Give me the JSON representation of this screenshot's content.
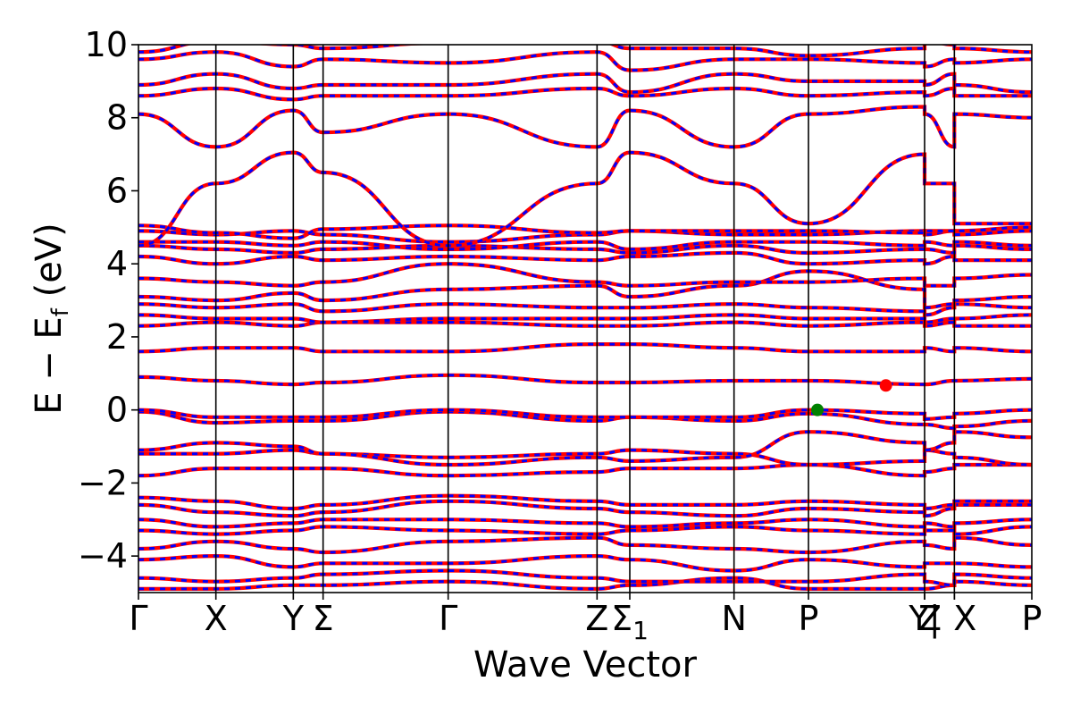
{
  "chart_data": {
    "type": "line",
    "xlabel": "Wave Vector",
    "ylabel": "E − E",
    "ylabel_sub": "f",
    "ylabel_unit": " (eV)",
    "ylim": [
      -5,
      10
    ],
    "yticks": [
      -4,
      -2,
      0,
      2,
      4,
      6,
      8,
      10
    ],
    "ytick_labels": [
      "−4",
      "−2",
      "0",
      "2",
      "4",
      "6",
      "8",
      "10"
    ],
    "grid": false,
    "legend": "none",
    "kpath": [
      {
        "label": "Γ",
        "sub": "",
        "x": 0.0
      },
      {
        "label": "X",
        "sub": "",
        "x": 0.26
      },
      {
        "label": "Y",
        "sub": "",
        "x": 0.52
      },
      {
        "label": "Σ",
        "sub": "",
        "x": 0.62
      },
      {
        "label": "Γ",
        "sub": "",
        "x": 1.04
      },
      {
        "label": "Z",
        "sub": "",
        "x": 1.54
      },
      {
        "label": "Σ",
        "sub": "1",
        "x": 1.65
      },
      {
        "label": "N",
        "sub": "",
        "x": 2.0
      },
      {
        "label": "P",
        "sub": "",
        "x": 2.25
      },
      {
        "label": "Y",
        "sub": "",
        "x": 2.64
      },
      {
        "label": "Z",
        "sub": "",
        "x": 2.64
      },
      {
        "label": "|",
        "sub": "",
        "x": 2.74
      },
      {
        "label": "X",
        "sub": "",
        "x": 2.74
      },
      {
        "label": "P",
        "sub": "",
        "x": 3.0
      }
    ],
    "xlim": [
      0.0,
      3.0
    ],
    "band_colors": {
      "spin_up": "#ff0000",
      "spin_down": "#0000ff"
    },
    "bands": [
      {
        "name": "",
        "y": [
          -4.9,
          -4.9,
          -4.8,
          -4.8,
          -4.7,
          -4.9,
          -4.8,
          -4.6,
          -4.9,
          -4.9,
          -4.9,
          -4.8,
          -4.7,
          -4.8
        ]
      },
      {
        "name": "",
        "y": [
          -4.6,
          -4.7,
          -4.6,
          -4.5,
          -4.4,
          -4.6,
          -4.7,
          -4.7,
          -4.7,
          -4.5,
          -4.7,
          -4.8,
          -4.5,
          -4.6
        ]
      },
      {
        "name": "",
        "y": [
          -4.1,
          -4.0,
          -4.3,
          -4.2,
          -4.2,
          -4.0,
          -4.1,
          -4.4,
          -4.1,
          -4.3,
          -4.2,
          -4.2,
          -4.2,
          -4.3
        ]
      },
      {
        "name": "",
        "y": [
          -3.8,
          -3.6,
          -3.8,
          -3.9,
          -3.6,
          -3.5,
          -3.7,
          -3.8,
          -3.9,
          -3.6,
          -3.7,
          -3.8,
          -3.5,
          -3.7
        ]
      },
      {
        "name": "",
        "y": [
          -3.3,
          -3.4,
          -3.3,
          -3.2,
          -3.3,
          -3.4,
          -3.3,
          -3.2,
          -3.3,
          -3.4,
          -3.3,
          -3.3,
          -3.4,
          -3.2
        ]
      },
      {
        "name": "",
        "y": [
          -3.0,
          -3.2,
          -3.1,
          -3.0,
          -3.0,
          -3.1,
          -3.2,
          -3.1,
          -3.0,
          -3.2,
          -3.1,
          -3.2,
          -3.1,
          -3.0
        ]
      },
      {
        "name": "",
        "y": [
          -2.6,
          -2.8,
          -2.9,
          -2.8,
          -2.5,
          -2.7,
          -2.8,
          -2.9,
          -2.7,
          -2.8,
          -2.9,
          -2.7,
          -2.6,
          -2.6
        ]
      },
      {
        "name": "",
        "y": [
          -2.4,
          -2.5,
          -2.7,
          -2.6,
          -2.35,
          -2.5,
          -2.6,
          -2.6,
          -2.5,
          -2.6,
          -2.7,
          -2.6,
          -2.5,
          -2.5
        ]
      },
      {
        "name": "",
        "y": [
          -1.8,
          -1.6,
          -1.6,
          -1.6,
          -1.8,
          -1.7,
          -1.6,
          -1.6,
          -1.5,
          -1.8,
          -1.7,
          -1.6,
          -1.5,
          -1.5
        ]
      },
      {
        "name": "",
        "y": [
          -1.2,
          -1.2,
          -1.1,
          -1.2,
          -1.3,
          -1.2,
          -1.1,
          -1.2,
          -1.5,
          -1.4,
          -1.1,
          -1.2,
          -1.3,
          -1.5
        ]
      },
      {
        "name": "",
        "y": [
          -1.1,
          -0.9,
          -1.0,
          -1.2,
          -1.5,
          -1.3,
          -1.4,
          -1.3,
          -0.6,
          -0.9,
          -1.1,
          -0.9,
          -0.6,
          -0.75
        ]
      },
      {
        "name": "",
        "y": [
          -0.05,
          -0.35,
          -0.3,
          -0.3,
          -0.05,
          -0.3,
          -0.2,
          -0.3,
          -0.1,
          -0.4,
          -0.4,
          -0.5,
          -0.45,
          -0.3
        ]
      },
      {
        "name": "",
        "y": [
          0.0,
          -0.2,
          -0.2,
          -0.2,
          0.0,
          -0.2,
          -0.2,
          -0.2,
          0.0,
          -0.1,
          -0.25,
          -0.2,
          -0.1,
          0.0
        ]
      },
      {
        "name": "",
        "y": [
          0.9,
          0.8,
          0.7,
          0.75,
          0.95,
          0.75,
          0.75,
          0.8,
          0.8,
          0.7,
          0.7,
          0.8,
          0.8,
          0.85
        ]
      },
      {
        "name": "",
        "y": [
          1.6,
          1.7,
          1.7,
          1.6,
          1.6,
          1.8,
          1.8,
          1.7,
          1.6,
          1.6,
          1.7,
          1.6,
          1.7,
          1.6
        ]
      },
      {
        "name": "",
        "y": [
          2.3,
          2.4,
          2.3,
          2.4,
          2.4,
          2.3,
          2.3,
          2.4,
          2.3,
          2.4,
          2.3,
          2.4,
          2.3,
          2.3
        ]
      },
      {
        "name": "",
        "y": [
          2.6,
          2.5,
          2.5,
          2.4,
          2.5,
          2.5,
          2.5,
          2.6,
          2.5,
          2.5,
          2.4,
          2.5,
          2.5,
          2.6
        ]
      },
      {
        "name": "",
        "y": [
          2.9,
          2.8,
          2.9,
          2.7,
          2.9,
          2.8,
          2.8,
          2.9,
          2.8,
          2.7,
          2.6,
          2.8,
          2.9,
          2.8
        ]
      },
      {
        "name": "",
        "y": [
          3.1,
          3.0,
          3.2,
          3.0,
          3.3,
          3.4,
          3.1,
          3.4,
          3.8,
          3.3,
          2.8,
          2.9,
          3.0,
          3.1
        ]
      },
      {
        "name": "",
        "y": [
          3.6,
          3.5,
          3.4,
          3.5,
          4.0,
          3.5,
          3.4,
          3.5,
          3.5,
          3.6,
          3.4,
          3.4,
          3.6,
          3.7
        ]
      },
      {
        "name": "",
        "y": [
          4.2,
          4.0,
          4.2,
          4.1,
          4.2,
          4.1,
          4.2,
          4.3,
          4.0,
          4.1,
          4.0,
          4.2,
          4.1,
          4.1
        ]
      },
      {
        "name": "",
        "y": [
          4.5,
          4.4,
          4.3,
          4.4,
          4.5,
          4.4,
          4.3,
          4.5,
          4.3,
          4.4,
          4.4,
          4.3,
          4.5,
          4.4
        ]
      },
      {
        "name": "",
        "y": [
          4.6,
          4.6,
          4.5,
          4.6,
          4.4,
          4.6,
          4.4,
          4.6,
          4.6,
          4.5,
          4.6,
          4.5,
          4.6,
          4.5
        ]
      },
      {
        "name": "",
        "y": [
          4.9,
          4.8,
          4.9,
          4.8,
          4.6,
          4.8,
          4.9,
          4.8,
          4.8,
          4.9,
          4.8,
          4.9,
          4.8,
          4.9
        ]
      },
      {
        "name": "",
        "y": [
          5.05,
          4.85,
          4.7,
          4.95,
          5.05,
          4.85,
          4.9,
          4.9,
          4.9,
          4.85,
          4.9,
          4.9,
          4.9,
          5.0
        ]
      },
      {
        "name": "",
        "y": [
          4.5,
          6.2,
          7.05,
          6.5,
          4.5,
          6.2,
          7.05,
          6.2,
          5.1,
          7.0,
          6.2,
          6.2,
          5.1,
          5.1
        ]
      },
      {
        "name": "",
        "y": [
          8.1,
          7.2,
          8.2,
          7.6,
          8.1,
          7.2,
          8.2,
          7.2,
          8.1,
          8.3,
          8.1,
          7.2,
          8.1,
          8.0
        ]
      },
      {
        "name": "",
        "y": [
          8.6,
          8.8,
          8.5,
          8.6,
          8.6,
          8.8,
          8.6,
          8.8,
          8.6,
          8.7,
          8.6,
          8.8,
          8.6,
          8.6
        ]
      },
      {
        "name": "",
        "y": [
          8.9,
          9.2,
          8.8,
          8.9,
          8.9,
          9.2,
          8.7,
          9.2,
          9.0,
          9.0,
          8.9,
          9.2,
          8.9,
          8.7
        ]
      },
      {
        "name": "",
        "y": [
          9.6,
          9.8,
          9.4,
          9.6,
          9.5,
          9.8,
          9.3,
          9.6,
          9.6,
          9.5,
          9.4,
          9.6,
          9.5,
          9.6
        ]
      },
      {
        "name": "",
        "y": [
          9.8,
          10.1,
          10.0,
          9.9,
          10.05,
          10.1,
          9.9,
          9.9,
          9.7,
          9.9,
          10.1,
          10.0,
          9.9,
          9.8
        ]
      }
    ],
    "markers": [
      {
        "name": "",
        "x": 2.28,
        "y": 0.0,
        "color": "#008000"
      },
      {
        "name": "",
        "x": 2.51,
        "y": 0.67,
        "color": "#ff0000"
      }
    ]
  }
}
